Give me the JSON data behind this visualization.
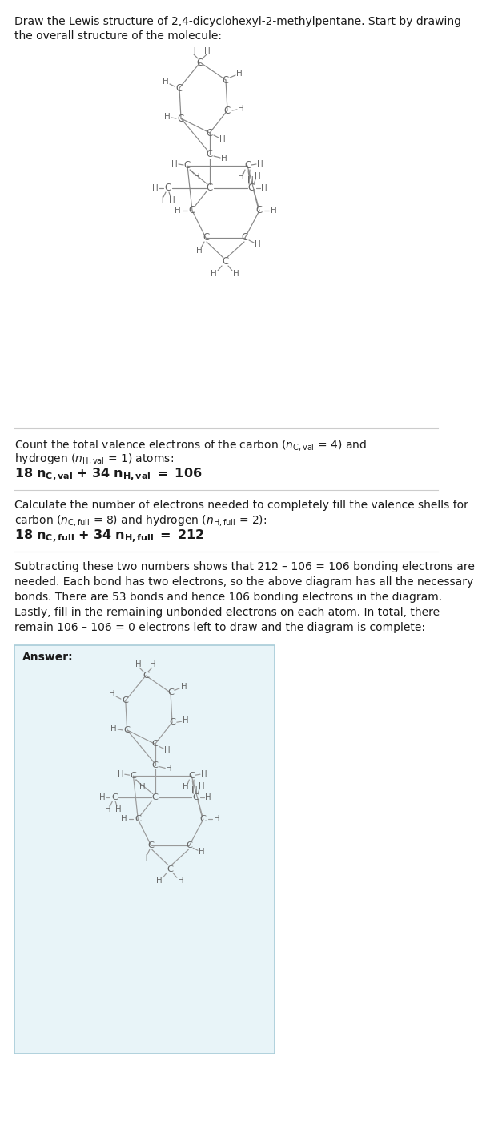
{
  "title": "Draw the Lewis structure of 2,4-dicyclohexyl-2-methylpentane. Start by drawing\nthe overall structure of the molecule:",
  "sec1_line1": "Count the total valence electrons of the carbon (",
  "sec1_math": "18 n_{C,val} + 34 n_{H,val} = 106",
  "sec2_math": "18 n_{C,full} + 34 n_{H,full} = 212",
  "sec3_text": "Subtracting these two numbers shows that 212 – 106 = 106 bonding electrons are\nneeded. Each bond has two electrons, so the above diagram has all the necessary\nbonds. There are 53 bonds and hence 106 bonding electrons in the diagram.\nLastly, fill in the remaining unbonded electrons on each atom. In total, there\nremain 106 – 106 = 0 electrons left to draw and the diagram is complete:",
  "answer_label": "Answer:",
  "bg_color": "#ffffff",
  "ans_bg": "#e8f4f8",
  "ans_border": "#a8ccd8",
  "text_color": "#1a1a1a",
  "atom_color": "#666666",
  "bond_color": "#888888",
  "ans_atom_color": "#666666",
  "ans_bond_color": "#999999"
}
